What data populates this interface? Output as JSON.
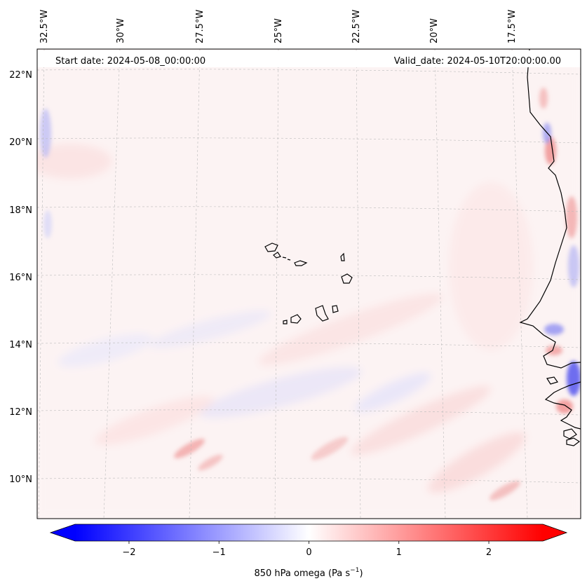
{
  "header": {
    "start_date": "Start date: 2024-05-08_00:00:00",
    "valid_date": "Valid_date: 2024-05-10T20:00:00.00"
  },
  "lon_labels": [
    "32.5°W",
    "30°W",
    "27.5°W",
    "25°W",
    "22.5°W",
    "20°W",
    "17.5°W"
  ],
  "lat_labels": [
    "22°N",
    "20°N",
    "18°N",
    "16°N",
    "14°N",
    "12°N",
    "10°N"
  ],
  "colorbar": {
    "title": "850 hPa omega (Pa s",
    "title_exponent": "−1",
    "title_suffix": ")",
    "ticks": [
      "−2",
      "−1",
      "0",
      "1",
      "2"
    ],
    "tick_values": [
      -2,
      -1,
      0,
      1,
      2
    ],
    "range": [
      -2.6,
      2.6
    ],
    "colormap": "bwr",
    "color_min": "#0000ff",
    "color_mid": "#ffffff",
    "color_max": "#ff0000",
    "extend": "both"
  },
  "map": {
    "variable": "850 hPa omega",
    "lon_range": [
      -33,
      -15
    ],
    "lat_range": [
      9,
      22.7
    ],
    "coastline_color": "#000000",
    "gridline_color": "#bbbbbb"
  }
}
